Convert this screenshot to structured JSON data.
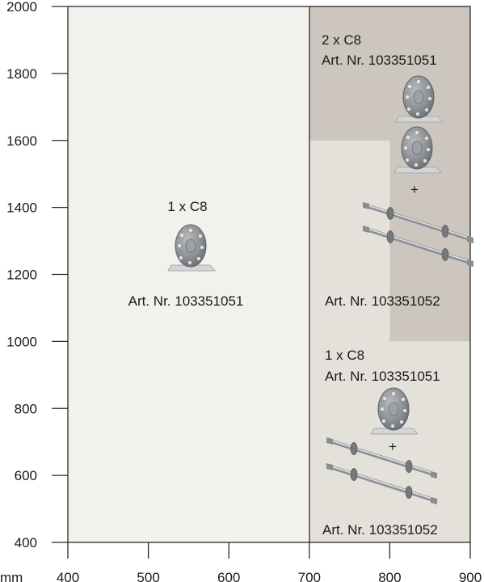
{
  "chart_data": {
    "type": "area",
    "title": "",
    "xlabel": "mm",
    "ylabel": "",
    "xlim": [
      400,
      900
    ],
    "ylim": [
      400,
      2000
    ],
    "x_ticks": [
      "400",
      "500",
      "600",
      "700",
      "800",
      "900"
    ],
    "y_ticks": [
      "400",
      "600",
      "800",
      "1000",
      "1200",
      "1400",
      "1600",
      "1800",
      "2000"
    ],
    "grid": false,
    "legend": "none",
    "regions": [
      {
        "x": [
          400,
          700
        ],
        "y": [
          400,
          2000
        ],
        "color": "#f2f1ed"
      },
      {
        "x": [
          700,
          900
        ],
        "y": [
          400,
          2000
        ],
        "color": "#e4e1db"
      },
      {
        "x": [
          700,
          900
        ],
        "y": [
          1600,
          2000
        ],
        "color": "#cdc6bf"
      },
      {
        "x": [
          800,
          900
        ],
        "y": [
          1000,
          1600
        ],
        "color": "#cdc6bf"
      }
    ],
    "annotations": {
      "left_qty": "1 x C8",
      "left_art": "Art. Nr. 103351051",
      "top_right_qty": "2 x C8",
      "top_right_art": "Art. Nr. 103351051",
      "top_right_plus": "+",
      "top_right_art2": "Art. Nr. 103351052",
      "bottom_right_qty": "1 x C8",
      "bottom_right_art": "Art. Nr. 103351051",
      "bottom_right_plus": "+",
      "bottom_right_art2": "Art. Nr. 103351052"
    },
    "icons": [
      "c8-disc-icon",
      "c8-disc-icon",
      "c8-disc-icon",
      "axle-rod-icon",
      "axle-rod-icon",
      "c8-disc-icon",
      "axle-rod-icon",
      "axle-rod-icon"
    ]
  }
}
